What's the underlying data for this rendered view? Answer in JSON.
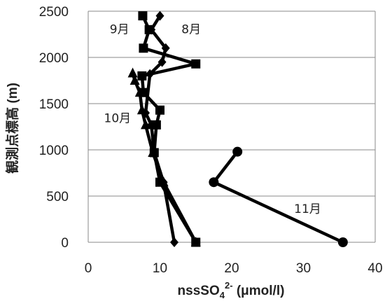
{
  "chart_data": {
    "type": "line",
    "xlabel_main": "nssSO",
    "xlabel_sub": "4",
    "xlabel_sup": "2-",
    "xlabel_unit": " (μmol/l)",
    "ylabel": "観測点標高 (m)",
    "xlim": [
      0,
      40
    ],
    "ylim": [
      0,
      2500
    ],
    "xticks": [
      "0",
      "10",
      "20",
      "30",
      "40"
    ],
    "yticks": [
      "0",
      "500",
      "1000",
      "1500",
      "2000",
      "2500"
    ],
    "grid": "horizontal",
    "series": [
      {
        "name": "8月",
        "marker": "diamond",
        "points": [
          {
            "x": 12.0,
            "y": 0
          },
          {
            "x": 10.5,
            "y": 650
          },
          {
            "x": 9.2,
            "y": 970
          },
          {
            "x": 8.8,
            "y": 1270
          },
          {
            "x": 8.0,
            "y": 1400
          },
          {
            "x": 8.6,
            "y": 1820
          },
          {
            "x": 10.3,
            "y": 1950
          },
          {
            "x": 10.8,
            "y": 2100
          },
          {
            "x": 8.8,
            "y": 2300
          },
          {
            "x": 10.0,
            "y": 2450
          }
        ]
      },
      {
        "name": "9月",
        "marker": "square",
        "points": [
          {
            "x": 15.0,
            "y": 0
          },
          {
            "x": 10.0,
            "y": 650
          },
          {
            "x": 9.2,
            "y": 970
          },
          {
            "x": 9.5,
            "y": 1270
          },
          {
            "x": 10.0,
            "y": 1430
          },
          {
            "x": 7.7,
            "y": 1620
          },
          {
            "x": 7.5,
            "y": 1800
          },
          {
            "x": 15.0,
            "y": 1930
          },
          {
            "x": 7.7,
            "y": 2100
          },
          {
            "x": 8.5,
            "y": 2300
          },
          {
            "x": 7.6,
            "y": 2450
          }
        ]
      },
      {
        "name": "10月",
        "marker": "triangle",
        "points": [
          {
            "x": 15.0,
            "y": 0
          },
          {
            "x": 10.5,
            "y": 650
          },
          {
            "x": 9.0,
            "y": 970
          },
          {
            "x": 8.0,
            "y": 1270
          },
          {
            "x": 7.5,
            "y": 1430
          },
          {
            "x": 7.2,
            "y": 1620
          },
          {
            "x": 6.5,
            "y": 1750
          },
          {
            "x": 6.2,
            "y": 1830
          }
        ]
      },
      {
        "name": "11月",
        "marker": "circle",
        "points": [
          {
            "x": 35.5,
            "y": 0
          },
          {
            "x": 17.5,
            "y": 650
          },
          {
            "x": 20.8,
            "y": 980
          }
        ]
      }
    ],
    "series_labels": [
      {
        "text": "9月",
        "x": 3.0,
        "y": 2260
      },
      {
        "text": "8月",
        "x": 13.0,
        "y": 2260
      },
      {
        "text": "10月",
        "x": 2.2,
        "y": 1300
      },
      {
        "text": "11月",
        "x": 28.7,
        "y": 320
      }
    ]
  }
}
